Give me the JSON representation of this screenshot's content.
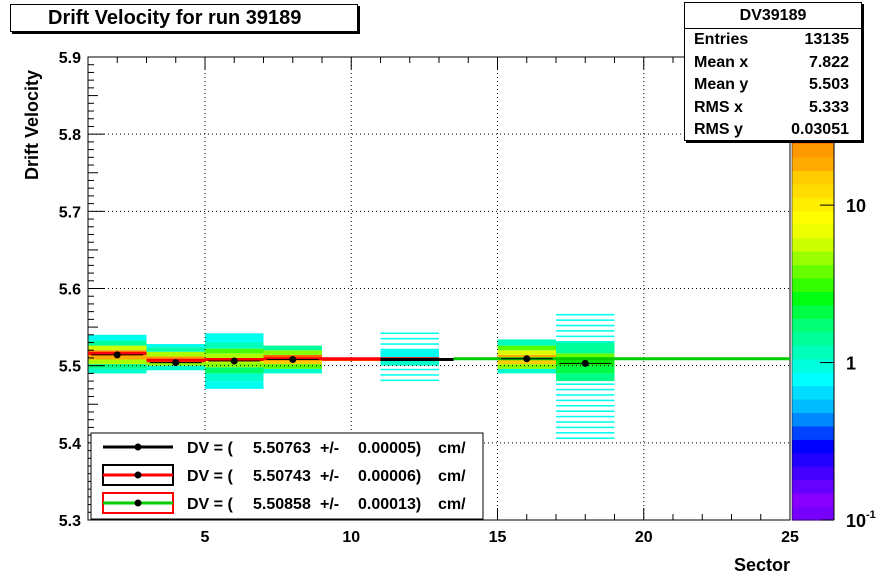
{
  "title": "Drift Velocity for run 39189",
  "stats": {
    "name": "DV39189",
    "rows": [
      {
        "label": "Entries",
        "value": "13135"
      },
      {
        "label": "Mean x",
        "value": "7.822"
      },
      {
        "label": "Mean y",
        "value": "5.503"
      },
      {
        "label": "RMS x",
        "value": "5.333"
      },
      {
        "label": "RMS y",
        "value": "0.03051"
      }
    ]
  },
  "chart_data": {
    "type": "heatmap",
    "title": "Drift Velocity for run 39189",
    "xlabel": "Sector",
    "ylabel": "Drift Velocity",
    "xlim": [
      1,
      25
    ],
    "ylim": [
      5.3,
      5.9
    ],
    "xticks": [
      "5",
      "10",
      "15",
      "20",
      "25"
    ],
    "yticks": [
      "5.3",
      "5.4",
      "5.5",
      "5.6",
      "5.7",
      "5.8",
      "5.9"
    ],
    "grid": true,
    "zscale": "log",
    "zlim": [
      0.1,
      30
    ],
    "colorbar_labels": [
      {
        "value": 0.1,
        "base": "10",
        "exp": "-1"
      },
      {
        "value": 1,
        "base": "1",
        "exp": ""
      },
      {
        "value": 10,
        "base": "10",
        "exp": ""
      }
    ],
    "points": [
      {
        "x": 2,
        "y": 5.514
      },
      {
        "x": 4,
        "y": 5.504
      },
      {
        "x": 6,
        "y": 5.506
      },
      {
        "x": 8,
        "y": 5.508
      },
      {
        "x": 16,
        "y": 5.509
      },
      {
        "x": 18,
        "y": 5.503
      }
    ],
    "fits": [
      {
        "x": [
          1,
          3
        ],
        "y": 5.516,
        "color": "#ff0000"
      },
      {
        "x": [
          3,
          5
        ],
        "y": 5.507,
        "color": "#ff0000"
      },
      {
        "x": [
          5,
          7
        ],
        "y": 5.508,
        "color": "#ff0000"
      },
      {
        "x": [
          7,
          13
        ],
        "y": 5.509,
        "color": "#ff0000"
      },
      {
        "x": [
          11,
          13.5
        ],
        "y": 5.508,
        "color": "#000000"
      },
      {
        "x": [
          13.5,
          25
        ],
        "y": 5.509,
        "color": "#00cc00"
      }
    ],
    "legend_position": "bottom-left",
    "legend": [
      {
        "prefix": "DV = (",
        "value": "5.50763",
        "pm": "+/-",
        "err": "0.00005)",
        "unit": "cm/",
        "box": "#ffffff",
        "line": "#000000"
      },
      {
        "prefix": "DV = (",
        "value": "5.50743",
        "pm": "+/-",
        "err": "0.00006)",
        "unit": "cm/",
        "box": "#000000",
        "line": "#ff0000"
      },
      {
        "prefix": "DV = (",
        "value": "5.50858",
        "pm": "+/-",
        "err": "0.00013)",
        "unit": "cm/",
        "box": "#ff0000",
        "line": "#00cc00"
      }
    ]
  }
}
